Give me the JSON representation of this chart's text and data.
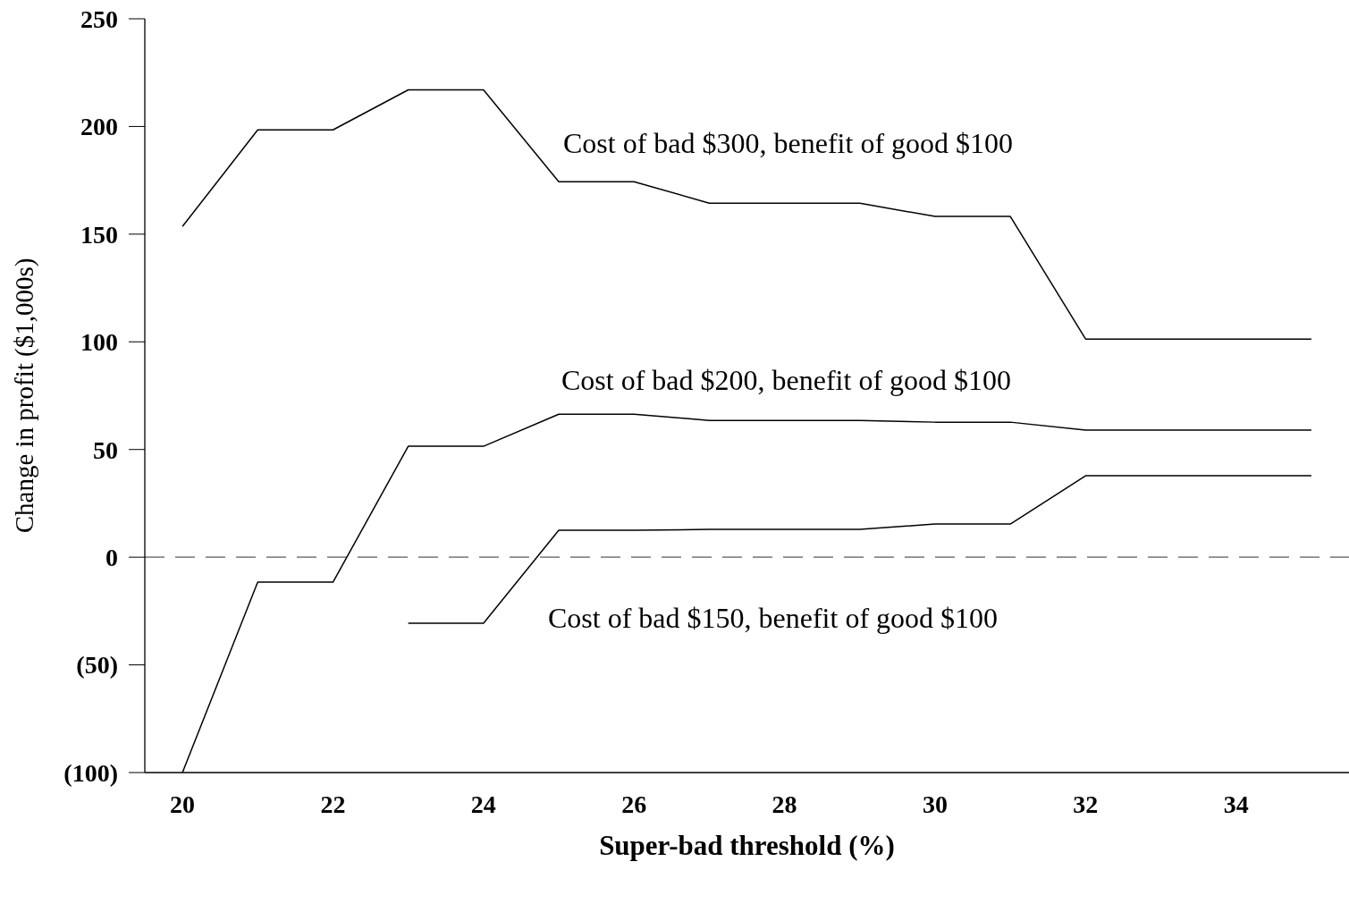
{
  "chart_data": {
    "type": "line",
    "xlabel": "Super-bad threshold (%)",
    "ylabel": "Change in profit ($1,000s)",
    "x": [
      20,
      21,
      22,
      23,
      24,
      25,
      26,
      27,
      28,
      29,
      30,
      31,
      32,
      33,
      34,
      35
    ],
    "series": [
      {
        "color": "#000000",
        "values": [
          153.6,
          198.4,
          198.4,
          217,
          217,
          174.3,
          174.3,
          164.4,
          164.4,
          164.4,
          158.2,
          158.2,
          101.3,
          101.3,
          101.3,
          101.3
        ]
      },
      {
        "color": "#000000",
        "values": [
          -100,
          -11.6,
          -11.6,
          51.5,
          51.5,
          66.4,
          66.4,
          63.5,
          63.5,
          63.5,
          62.7,
          62.7,
          59,
          59,
          59,
          59
        ]
      },
      {
        "color": "#000000",
        "values": [
          null,
          null,
          null,
          -30.7,
          -30.7,
          12.5,
          12.5,
          12.9,
          12.9,
          12.9,
          15.4,
          15.4,
          37.8,
          37.8,
          37.8,
          37.8
        ]
      }
    ],
    "xlim": [
      19.5,
      35.5
    ],
    "xticks": [
      20,
      22,
      24,
      26,
      28,
      30,
      32,
      34
    ],
    "ylim": [
      -100,
      250
    ],
    "yticks": [
      {
        "value": -100,
        "label": "(100)"
      },
      {
        "value": -50,
        "label": "(50)"
      },
      0,
      50,
      100,
      150,
      200,
      250
    ],
    "ref_lines": [
      {
        "axis": "y",
        "value": 0,
        "color": "#888888",
        "line_style": "dashed"
      }
    ],
    "annotations": [
      "Cost of bad $300, benefit of good $100",
      "Cost of bad $200, benefit of good $100",
      "Cost of bad $150, benefit of good $100"
    ],
    "grid": false,
    "marker": "none",
    "line_style": "solid"
  }
}
